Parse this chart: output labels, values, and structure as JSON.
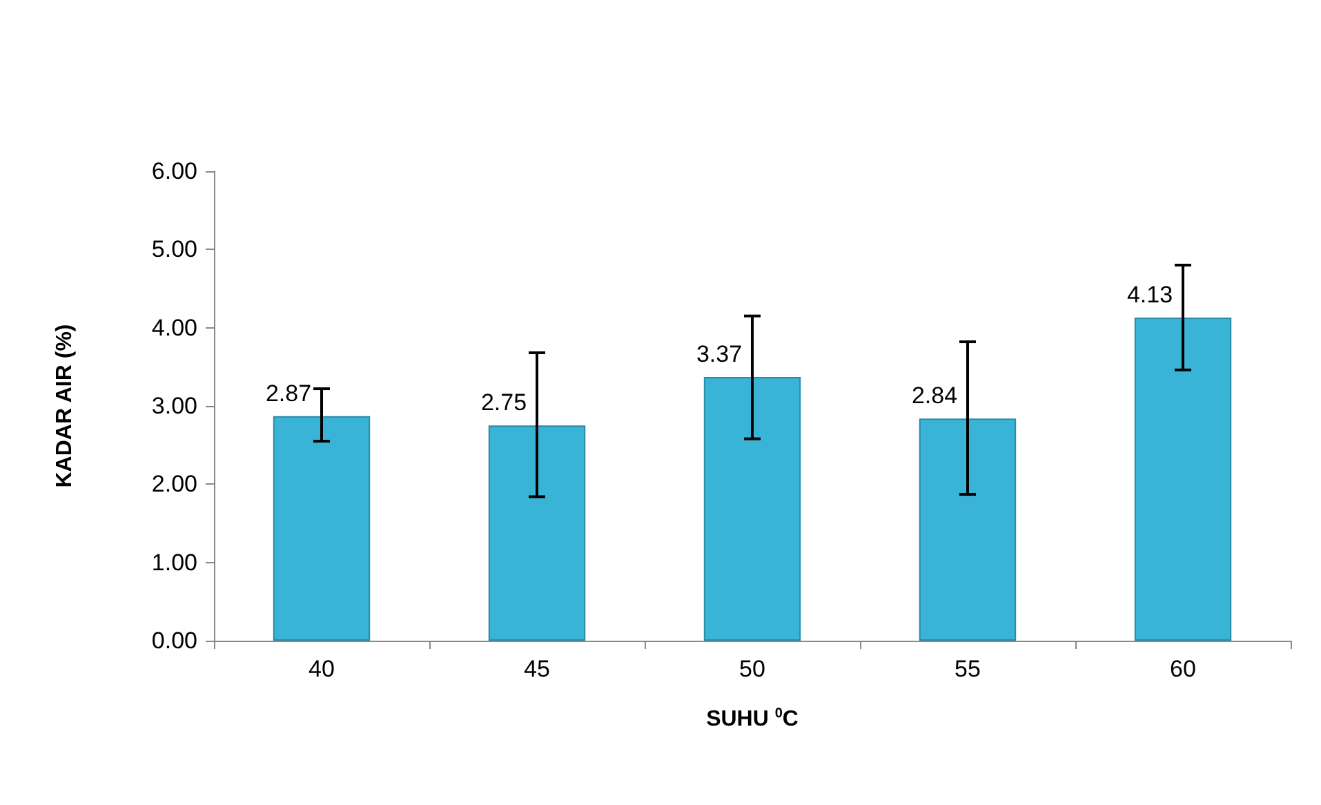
{
  "chart_data": {
    "type": "bar",
    "xlabel": "SUHU $^{0}$C",
    "ylabel": "KADAR AIR (%)",
    "categories": [
      "40",
      "45",
      "50",
      "55",
      "60"
    ],
    "values": [
      2.87,
      2.75,
      3.37,
      2.84,
      4.13
    ],
    "errors": [
      [
        2.55,
        3.22
      ],
      [
        1.84,
        3.68
      ],
      [
        2.58,
        4.15
      ],
      [
        1.87,
        3.82
      ],
      [
        3.46,
        4.8
      ]
    ],
    "color": "#3ab4d6",
    "data_labels": true,
    "grid": false,
    "ylim": [
      0,
      6
    ],
    "yticks": [
      {
        "value": 0,
        "label": "0.00"
      },
      {
        "value": 1,
        "label": "1.00"
      },
      {
        "value": 2,
        "label": "2.00"
      },
      {
        "value": 3,
        "label": "3.00"
      },
      {
        "value": 4,
        "label": "4.00"
      },
      {
        "value": 5,
        "label": "5.00"
      },
      {
        "value": 6,
        "label": "6.00"
      }
    ]
  }
}
